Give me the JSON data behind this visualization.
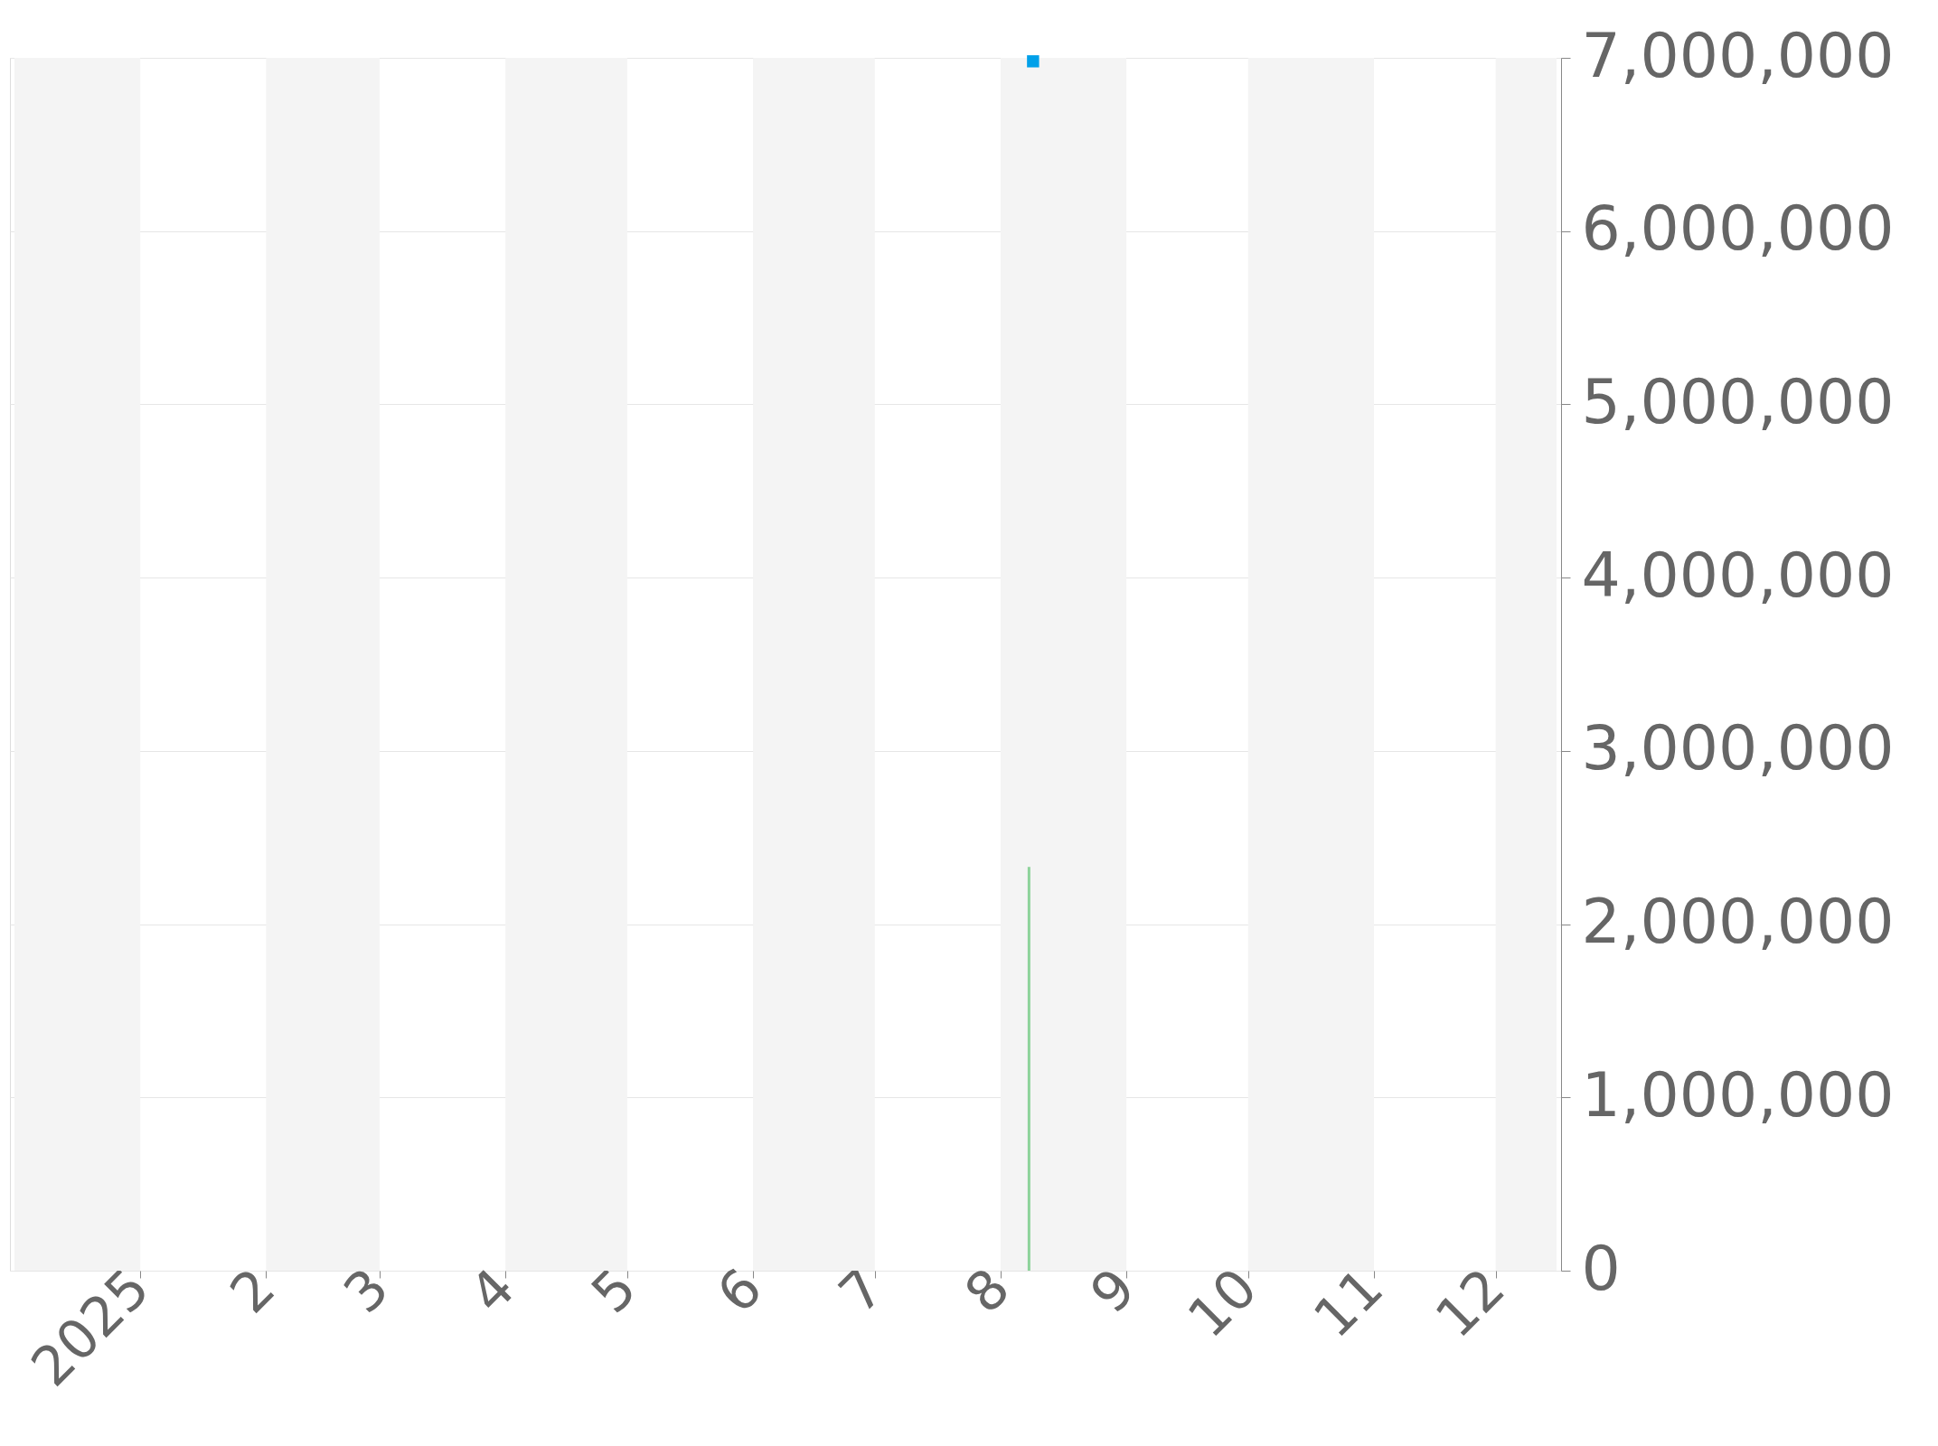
{
  "chart_data": {
    "type": "bar",
    "series": [
      {
        "color": "#8dd39a",
        "x": [
          "2025-08-08"
        ],
        "values": [
          2330000
        ]
      },
      {
        "type": "scatter",
        "color": "#00a0e9",
        "marker": "square",
        "x": [
          "2025-08-09"
        ],
        "values": [
          6980000
        ]
      }
    ],
    "xlim": [
      "2024-12-01",
      "2025-12-16"
    ],
    "xticks": [
      {
        "value": "2025-01-01",
        "label": "2025"
      },
      {
        "value": "2025-02-01",
        "label": "2"
      },
      {
        "value": "2025-03-01",
        "label": "3"
      },
      {
        "value": "2025-04-01",
        "label": "4"
      },
      {
        "value": "2025-05-01",
        "label": "5"
      },
      {
        "value": "2025-06-01",
        "label": "6"
      },
      {
        "value": "2025-07-01",
        "label": "7"
      },
      {
        "value": "2025-08-01",
        "label": "8"
      },
      {
        "value": "2025-09-01",
        "label": "9"
      },
      {
        "value": "2025-10-01",
        "label": "10"
      },
      {
        "value": "2025-11-01",
        "label": "11"
      },
      {
        "value": "2025-12-01",
        "label": "12"
      }
    ],
    "ylim": [
      0,
      7000000
    ],
    "yticks": [
      0,
      {
        "value": 1000000,
        "label": "1,000,000"
      },
      {
        "value": 2000000,
        "label": "2,000,000"
      },
      {
        "value": 3000000,
        "label": "3,000,000"
      },
      {
        "value": 4000000,
        "label": "4,000,000"
      },
      {
        "value": 5000000,
        "label": "5,000,000"
      },
      {
        "value": 6000000,
        "label": "6,000,000"
      },
      {
        "value": 7000000,
        "label": "7,000,000"
      }
    ],
    "bands": [
      {
        "axis": "x",
        "from": "2024-12-01",
        "to": "2025-01-01",
        "color": "#f4f4f4"
      },
      {
        "axis": "x",
        "from": "2025-02-01",
        "to": "2025-03-01",
        "color": "#f4f4f4"
      },
      {
        "axis": "x",
        "from": "2025-04-01",
        "to": "2025-05-01",
        "color": "#f4f4f4"
      },
      {
        "axis": "x",
        "from": "2025-06-01",
        "to": "2025-07-01",
        "color": "#f4f4f4"
      },
      {
        "axis": "x",
        "from": "2025-08-01",
        "to": "2025-09-01",
        "color": "#f4f4f4"
      },
      {
        "axis": "x",
        "from": "2025-10-01",
        "to": "2025-11-01",
        "color": "#f4f4f4"
      },
      {
        "axis": "x",
        "from": "2025-12-01",
        "to": "2025-12-16",
        "color": "#f4f4f4"
      }
    ],
    "grid": "y"
  }
}
